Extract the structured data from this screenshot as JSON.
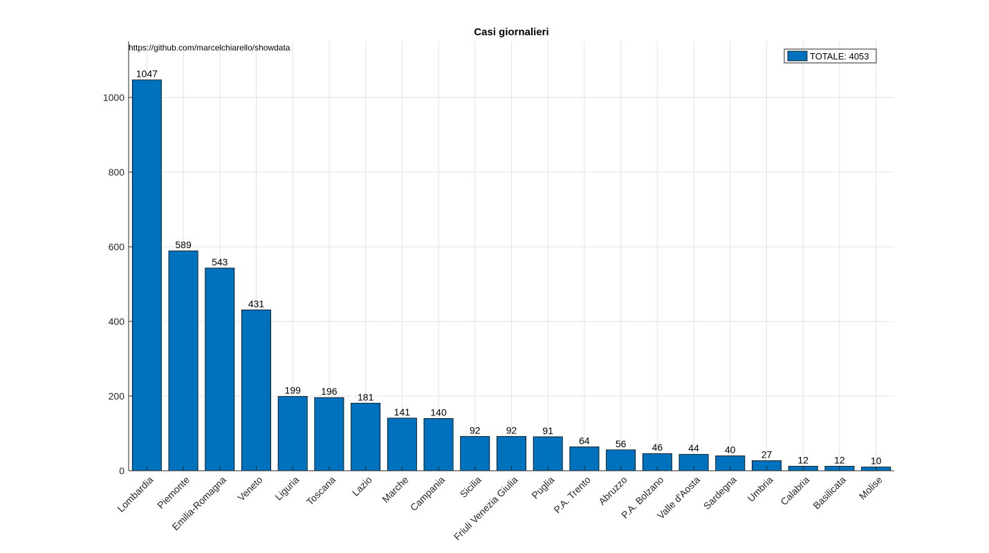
{
  "chart_data": {
    "type": "bar",
    "title": "Casi giornalieri",
    "annotation": "https://github.com/marcelchiarello/showdata",
    "categories": [
      "Lombardia",
      "Piemonte",
      "Emilia-Romagna",
      "Veneto",
      "Liguria",
      "Toscana",
      "Lazio",
      "Marche",
      "Campania",
      "Sicilia",
      "Friuli Venezia Giulia",
      "Puglia",
      "P.A. Trento",
      "Abruzzo",
      "P.A. Bolzano",
      "Valle d'Aosta",
      "Sardegna",
      "Umbria",
      "Calabria",
      "Basilicata",
      "Molise"
    ],
    "values": [
      1047,
      589,
      543,
      431,
      199,
      196,
      181,
      141,
      140,
      92,
      92,
      91,
      64,
      56,
      46,
      44,
      40,
      27,
      12,
      12,
      10
    ],
    "legend": {
      "label": "TOTALE: 4053",
      "position": "top-right"
    },
    "ylim": [
      0,
      1150
    ],
    "yticks": [
      0,
      200,
      400,
      600,
      800,
      1000
    ],
    "grid": true,
    "bar_color": "#0072BD",
    "xlabel": "",
    "ylabel": ""
  }
}
